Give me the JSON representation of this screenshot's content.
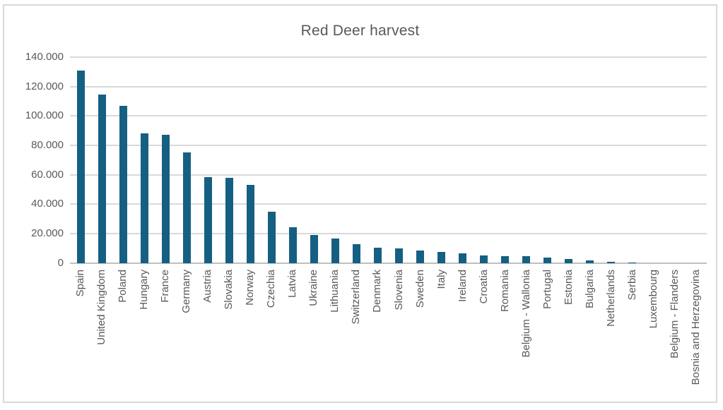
{
  "title": "Red Deer harvest",
  "colors": {
    "bar": "#156082",
    "text": "#595959",
    "gridline": "#d9d9d9",
    "axis_line": "#bfbfbf",
    "frame_border": "#d9d9d9",
    "background": "#ffffff"
  },
  "chart_data": {
    "type": "bar",
    "title": "Red Deer harvest",
    "xlabel": "",
    "ylabel": "",
    "ylim": [
      0,
      140000
    ],
    "ytick_step": 20000,
    "ytick_values": [
      0,
      20000,
      40000,
      60000,
      80000,
      100000,
      120000,
      140000
    ],
    "ytick_labels": [
      "0",
      "20.000",
      "40.000",
      "60.000",
      "80.000",
      "100.000",
      "120.000",
      "140.000"
    ],
    "grid": true,
    "legend": false,
    "x_label_rotation_deg": 90,
    "number_format": "thousands-dot",
    "categories": [
      "Spain",
      "United Kingdom",
      "Poland",
      "Hungary",
      "France",
      "Germany",
      "Austria",
      "Slovakia",
      "Norway",
      "Czechia",
      "Latvia",
      "Ukraine",
      "Lithuania",
      "Switzerland",
      "Denmark",
      "Slovenia",
      "Sweden",
      "Italy",
      "Ireland",
      "Croatia",
      "Romania",
      "Belgium - Wallonia",
      "Portugal",
      "Estonia",
      "Bulgaria",
      "Netherlands",
      "Serbia",
      "Luxembourg",
      "Belgium - Flanders",
      "Bosnia and Herzegovina"
    ],
    "values": [
      131300,
      114700,
      107000,
      88300,
      87300,
      75500,
      58700,
      58300,
      53500,
      35300,
      24500,
      19400,
      16800,
      13100,
      10600,
      10200,
      8700,
      7500,
      6800,
      5200,
      4700,
      4600,
      3900,
      3000,
      1800,
      800,
      700,
      0,
      0,
      0
    ]
  }
}
